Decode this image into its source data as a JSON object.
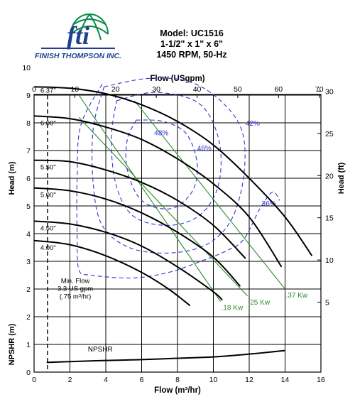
{
  "header": {
    "logo_text": "fti",
    "company": "FINISH THOMPSON INC.",
    "model": "Model: UC1516",
    "size": "1-1/2\" x 1\" x 6\"",
    "speed": "1450 RPM, 50-Hz"
  },
  "chart_data": {
    "type": "line",
    "x_bottom": {
      "label": "Flow (m³/hr)",
      "range": [
        0,
        16
      ],
      "ticks": [
        0,
        2,
        4,
        6,
        8,
        10,
        12,
        14,
        16
      ]
    },
    "x_top": {
      "label": "Flow (USgpm)",
      "range": [
        0,
        70.4
      ],
      "ticks": [
        0,
        10,
        20,
        30,
        40,
        50,
        60,
        70
      ]
    },
    "y_left_head": {
      "label": "Head (m)",
      "range": [
        0,
        10
      ],
      "ticks": [
        2,
        3,
        4,
        5,
        6,
        7,
        8,
        9,
        10
      ]
    },
    "y_left_npshr": {
      "label": "NPSHR (m)",
      "ticks": [
        0,
        1,
        2
      ]
    },
    "y_right": {
      "label": "Head (ft)",
      "range": [
        0,
        32.8
      ],
      "ticks": [
        5,
        10,
        15,
        20,
        25,
        30
      ]
    },
    "grid": true,
    "impeller_curves": [
      {
        "name": "6.37\"",
        "points": [
          [
            0,
            9.3
          ],
          [
            2,
            9.25
          ],
          [
            4,
            9.05
          ],
          [
            6,
            8.65
          ],
          [
            8,
            8.05
          ],
          [
            10,
            7.2
          ],
          [
            12,
            6.0
          ],
          [
            14,
            4.6
          ],
          [
            15.5,
            3.2
          ]
        ]
      },
      {
        "name": "6.00\"",
        "points": [
          [
            0,
            8.25
          ],
          [
            2,
            8.15
          ],
          [
            4,
            7.85
          ],
          [
            6,
            7.4
          ],
          [
            8,
            6.7
          ],
          [
            10,
            5.8
          ],
          [
            12,
            4.6
          ],
          [
            13.8,
            2.8
          ]
        ]
      },
      {
        "name": "5.50\"",
        "points": [
          [
            0,
            6.65
          ],
          [
            2,
            6.6
          ],
          [
            4,
            6.3
          ],
          [
            6,
            5.85
          ],
          [
            8,
            5.2
          ],
          [
            10,
            4.3
          ],
          [
            11.8,
            3.1
          ]
        ]
      },
      {
        "name": "5.00\"",
        "points": [
          [
            0,
            5.65
          ],
          [
            2,
            5.55
          ],
          [
            4,
            5.25
          ],
          [
            6,
            4.75
          ],
          [
            8,
            4.05
          ],
          [
            10,
            3.15
          ],
          [
            11.5,
            2.1
          ]
        ]
      },
      {
        "name": "4.50\"",
        "points": [
          [
            0,
            4.45
          ],
          [
            2,
            4.35
          ],
          [
            4,
            4.05
          ],
          [
            6,
            3.55
          ],
          [
            8,
            2.8
          ],
          [
            10,
            1.9
          ],
          [
            10.5,
            1.6
          ]
        ]
      },
      {
        "name": "4.00\"",
        "points": [
          [
            0,
            3.75
          ],
          [
            2,
            3.6
          ],
          [
            4,
            3.2
          ],
          [
            6,
            2.6
          ],
          [
            7.5,
            2.0
          ],
          [
            8.7,
            1.4
          ]
        ]
      }
    ],
    "efficiency_curves": [
      {
        "name": "48%",
        "points": [
          [
            5.7,
            8.1
          ],
          [
            7.2,
            8.05
          ],
          [
            8.5,
            7.6
          ],
          [
            9.1,
            6.5
          ],
          [
            8.8,
            5.5
          ],
          [
            7.6,
            4.9
          ],
          [
            6.0,
            5.2
          ],
          [
            5.2,
            6.3
          ],
          [
            5.2,
            7.4
          ],
          [
            5.7,
            8.1
          ]
        ]
      },
      {
        "name": "46%",
        "points": [
          [
            4.6,
            8.8
          ],
          [
            6.8,
            9.1
          ],
          [
            9.2,
            8.7
          ],
          [
            10.3,
            7.4
          ],
          [
            10.3,
            5.8
          ],
          [
            9.3,
            4.7
          ],
          [
            7.6,
            4.3
          ],
          [
            5.6,
            4.6
          ],
          [
            4.6,
            5.7
          ],
          [
            4.3,
            7.4
          ],
          [
            4.6,
            8.8
          ]
        ]
      },
      {
        "name": "42%",
        "points": [
          [
            3.9,
            9.3
          ],
          [
            6.3,
            9.6
          ],
          [
            8.6,
            9.5
          ],
          [
            10.4,
            8.8
          ],
          [
            11.6,
            7.7
          ],
          [
            11.7,
            6.1
          ],
          [
            11.0,
            4.5
          ],
          [
            9.6,
            3.6
          ],
          [
            7.5,
            3.3
          ],
          [
            5.3,
            3.5
          ],
          [
            3.8,
            4.3
          ],
          [
            3.3,
            5.8
          ],
          [
            3.3,
            7.8
          ],
          [
            3.9,
            9.3
          ]
        ]
      },
      {
        "name": "36%",
        "points": [
          [
            3.8,
            9.4
          ],
          [
            2.6,
            7.9
          ],
          [
            2.4,
            6.0
          ],
          [
            2.4,
            4.0
          ],
          [
            2.5,
            2.7
          ],
          [
            3.2,
            2.5
          ],
          [
            5.5,
            2.4
          ],
          [
            7.5,
            2.6
          ],
          [
            9.3,
            3.0
          ],
          [
            10.8,
            3.4
          ],
          [
            11.7,
            3.8
          ],
          [
            12.6,
            4.9
          ],
          [
            13.3,
            5.5
          ],
          [
            13.7,
            5.2
          ]
        ]
      }
    ],
    "power_curves": [
      {
        "name": ".18 Kw",
        "points": [
          [
            2.5,
            9.0
          ],
          [
            10.4,
            1.55
          ]
        ]
      },
      {
        "name": ".25 Kw",
        "points": [
          [
            2.5,
            8.2
          ],
          [
            11.9,
            1.75
          ]
        ]
      },
      {
        "name": ".37 Kw",
        "points": [
          [
            5.6,
            8.8
          ],
          [
            14.0,
            2.0
          ]
        ]
      }
    ],
    "npshr_curve": {
      "name": "NPSHR",
      "points": [
        [
          0.7,
          0.35
        ],
        [
          2,
          0.38
        ],
        [
          4,
          0.42
        ],
        [
          6,
          0.45
        ],
        [
          8,
          0.5
        ],
        [
          10,
          0.55
        ],
        [
          12,
          0.65
        ],
        [
          14,
          0.78
        ]
      ]
    },
    "min_flow": {
      "x": 0.75,
      "label_lines": [
        "Min. Flow",
        "3.3 US gpm",
        "(.75 m³/hr)"
      ]
    }
  }
}
